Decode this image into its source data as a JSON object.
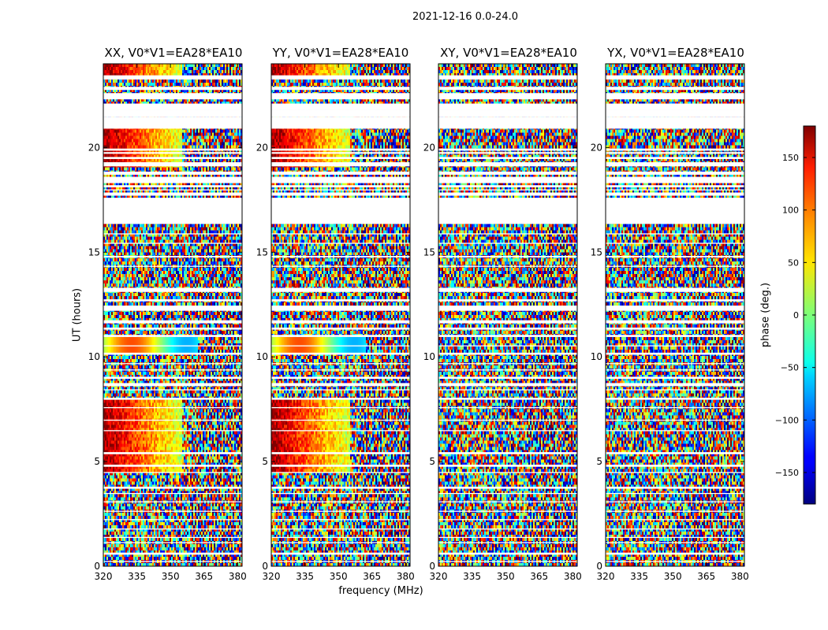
{
  "figure_title": "2021-12-16 0.0-24.0",
  "chart_data": {
    "type": "heatmap",
    "suptitle": "2021-12-16 0.0-24.0",
    "xlabel": "frequency (MHz)",
    "ylabel": "UT (hours)",
    "xlim": [
      320,
      382
    ],
    "ylim": [
      0,
      24
    ],
    "xticks": [
      320,
      335,
      350,
      365,
      380
    ],
    "yticks": [
      0,
      5,
      10,
      15,
      20
    ],
    "panels": [
      {
        "title": "XX, V0*V1=EA28*EA10",
        "coherent": true
      },
      {
        "title": "YY, V0*V1=EA28*EA10",
        "coherent": true
      },
      {
        "title": "XY, V0*V1=EA28*EA10",
        "coherent": false
      },
      {
        "title": "YX, V0*V1=EA28*EA10",
        "coherent": false
      }
    ],
    "colorbar": {
      "label": "phase (deg.)",
      "range": [
        -180,
        180
      ],
      "ticks": [
        -150,
        -100,
        -50,
        0,
        50,
        100,
        150
      ],
      "tick_labels": [
        "−150",
        "−100",
        "−50",
        "0",
        "50",
        "100",
        "150"
      ],
      "colormap": "jet"
    },
    "data_gaps_hours": [
      [
        23.25,
        23.45
      ],
      [
        22.75,
        22.9
      ],
      [
        22.3,
        22.6
      ],
      [
        21.8,
        22.1
      ],
      [
        21.45,
        21.8
      ],
      [
        20.9,
        21.45
      ],
      [
        19.85,
        19.95
      ],
      [
        19.7,
        19.78
      ],
      [
        19.45,
        19.55
      ],
      [
        19.1,
        19.3
      ],
      [
        18.7,
        18.85
      ],
      [
        18.3,
        18.6
      ],
      [
        18.1,
        18.2
      ],
      [
        17.95,
        18.0
      ],
      [
        17.7,
        17.85
      ],
      [
        16.35,
        17.6
      ],
      [
        15.85,
        15.9
      ],
      [
        15.4,
        15.45
      ],
      [
        14.75,
        14.82
      ],
      [
        14.3,
        14.35
      ],
      [
        13.1,
        13.3
      ],
      [
        12.65,
        12.75
      ],
      [
        12.2,
        12.45
      ],
      [
        11.6,
        11.75
      ],
      [
        11.3,
        11.4
      ],
      [
        10.95,
        11.05
      ],
      [
        10.5,
        10.55
      ],
      [
        10.1,
        10.2
      ],
      [
        9.65,
        9.7
      ],
      [
        9.35,
        9.4
      ],
      [
        8.95,
        9.05
      ],
      [
        8.6,
        8.75
      ],
      [
        8.4,
        8.45
      ],
      [
        7.95,
        8.05
      ],
      [
        7.55,
        7.6
      ],
      [
        6.95,
        7.0
      ],
      [
        6.45,
        6.5
      ],
      [
        5.35,
        5.45
      ],
      [
        4.75,
        4.85
      ],
      [
        4.45,
        4.5
      ],
      [
        3.7,
        3.8
      ],
      [
        3.45,
        3.5
      ],
      [
        3.05,
        3.1
      ],
      [
        2.6,
        2.65
      ],
      [
        2.2,
        2.25
      ],
      [
        1.75,
        1.8
      ],
      [
        1.35,
        1.4
      ],
      [
        1.1,
        1.15
      ],
      [
        0.55,
        0.65
      ],
      [
        0.2,
        0.25
      ]
    ]
  }
}
